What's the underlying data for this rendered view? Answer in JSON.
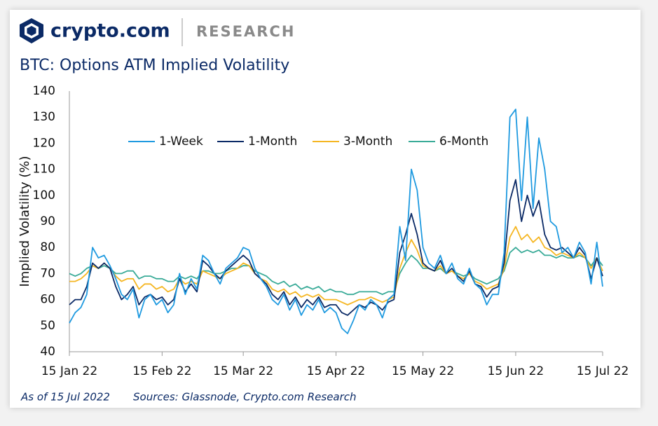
{
  "brand": {
    "name": "crypto.com",
    "section": "RESEARCH"
  },
  "chart_data": {
    "type": "line",
    "title": "BTC: Options ATM Implied Volatility",
    "y_label": "Implied Volatility (%)",
    "categories": [
      "15 Jan 22",
      null,
      null,
      null,
      null,
      null,
      null,
      null,
      null,
      null,
      null,
      null,
      null,
      null,
      null,
      null,
      "15 Feb 22",
      null,
      null,
      null,
      null,
      null,
      null,
      null,
      null,
      null,
      null,
      null,
      null,
      null,
      "15 Mar 22",
      null,
      null,
      null,
      null,
      null,
      null,
      null,
      null,
      null,
      null,
      null,
      null,
      null,
      null,
      null,
      "15 Apr 22",
      null,
      null,
      null,
      null,
      null,
      null,
      null,
      null,
      null,
      null,
      null,
      null,
      null,
      null,
      "15 May 22",
      null,
      null,
      null,
      null,
      null,
      null,
      null,
      null,
      null,
      null,
      null,
      null,
      null,
      null,
      null,
      "15 Jun 22",
      null,
      null,
      null,
      null,
      null,
      null,
      null,
      null,
      null,
      null,
      null,
      null,
      null,
      null,
      "15 Jul 22"
    ],
    "series": [
      {
        "name": "1-Week",
        "color": "#1f9ae0",
        "values": [
          51,
          55,
          57,
          62,
          80,
          76,
          77,
          73,
          68,
          62,
          60,
          64,
          53,
          60,
          62,
          58,
          60,
          55,
          58,
          70,
          62,
          68,
          64,
          77,
          75,
          70,
          66,
          72,
          74,
          76,
          80,
          79,
          72,
          68,
          65,
          60,
          58,
          62,
          56,
          60,
          54,
          58,
          56,
          60,
          55,
          57,
          55,
          49,
          47,
          52,
          58,
          56,
          60,
          58,
          53,
          60,
          62,
          88,
          75,
          110,
          102,
          80,
          74,
          72,
          77,
          70,
          74,
          68,
          66,
          72,
          66,
          64,
          58,
          62,
          62,
          78,
          130,
          133,
          98,
          130,
          95,
          122,
          110,
          90,
          88,
          78,
          80,
          76,
          82,
          78,
          66,
          82,
          65
        ]
      },
      {
        "name": "1-Month",
        "color": "#0b2a66",
        "values": [
          58,
          60,
          60,
          65,
          74,
          72,
          74,
          72,
          65,
          60,
          62,
          65,
          58,
          61,
          62,
          60,
          61,
          58,
          60,
          68,
          63,
          66,
          63,
          75,
          73,
          70,
          68,
          71,
          73,
          75,
          77,
          75,
          70,
          68,
          66,
          62,
          60,
          63,
          58,
          61,
          57,
          60,
          58,
          61,
          57,
          58,
          58,
          55,
          54,
          56,
          58,
          57,
          59,
          58,
          56,
          59,
          60,
          78,
          85,
          93,
          85,
          74,
          72,
          71,
          75,
          70,
          72,
          69,
          67,
          71,
          66,
          65,
          61,
          64,
          65,
          74,
          98,
          106,
          90,
          100,
          92,
          98,
          85,
          80,
          79,
          80,
          78,
          76,
          80,
          77,
          68,
          76,
          69
        ]
      },
      {
        "name": "3-Month",
        "color": "#f5b622",
        "values": [
          67,
          67,
          68,
          70,
          73,
          72,
          74,
          72,
          69,
          67,
          68,
          68,
          64,
          66,
          66,
          64,
          65,
          63,
          64,
          68,
          66,
          67,
          66,
          71,
          70,
          69,
          68,
          70,
          71,
          72,
          74,
          73,
          70,
          68,
          67,
          64,
          63,
          64,
          62,
          63,
          61,
          62,
          61,
          62,
          60,
          60,
          60,
          59,
          58,
          59,
          60,
          60,
          61,
          60,
          59,
          60,
          61,
          72,
          78,
          83,
          79,
          73,
          72,
          71,
          73,
          70,
          71,
          69,
          68,
          70,
          67,
          66,
          64,
          65,
          66,
          72,
          84,
          88,
          83,
          85,
          82,
          84,
          80,
          79,
          77,
          78,
          77,
          76,
          78,
          76,
          72,
          76,
          71
        ]
      },
      {
        "name": "6-Month",
        "color": "#3aab98",
        "values": [
          70,
          69,
          70,
          72,
          73,
          72,
          73,
          72,
          70,
          70,
          71,
          71,
          68,
          69,
          69,
          68,
          68,
          67,
          67,
          69,
          68,
          69,
          68,
          71,
          71,
          70,
          70,
          71,
          72,
          72,
          73,
          73,
          71,
          70,
          69,
          67,
          66,
          67,
          65,
          66,
          64,
          65,
          64,
          65,
          63,
          64,
          63,
          63,
          62,
          62,
          63,
          63,
          63,
          63,
          62,
          63,
          63,
          70,
          74,
          77,
          75,
          72,
          72,
          71,
          72,
          70,
          71,
          70,
          69,
          70,
          68,
          67,
          66,
          67,
          68,
          71,
          78,
          80,
          78,
          79,
          78,
          79,
          77,
          77,
          76,
          77,
          76,
          76,
          77,
          76,
          73,
          76,
          73
        ]
      }
    ],
    "ylim": [
      40,
      140
    ],
    "yticks": [
      40,
      50,
      60,
      70,
      80,
      90,
      100,
      110,
      120,
      130,
      140
    ],
    "grid": false,
    "legend": "top",
    "note": "As of 15 Jul 2022",
    "source": "Sources: Glassnode, Crypto.com Research"
  }
}
